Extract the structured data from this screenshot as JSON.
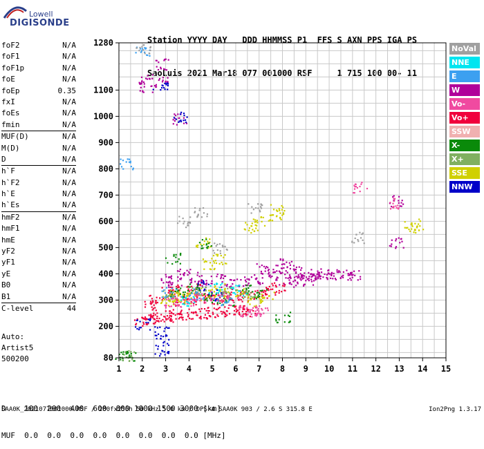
{
  "logo": {
    "line1": "Lowell",
    "line2": "DIGISONDE"
  },
  "header": {
    "line1": "Station YYYY DAY   DDD HHMMSS P1  FFS S AXN PPS IGA PS",
    "line2": "SaoLuis 2021 Mar18 077 001000 RSF     1 715 100 00- 11"
  },
  "params": [
    {
      "name": "foF2",
      "value": "N/A"
    },
    {
      "name": "foF1",
      "value": "N/A"
    },
    {
      "name": "foF1p",
      "value": "N/A"
    },
    {
      "name": "foE",
      "value": "N/A"
    },
    {
      "name": "foEp",
      "value": "0.35"
    },
    {
      "name": "fxI",
      "value": "N/A"
    },
    {
      "name": "foEs",
      "value": "N/A"
    },
    {
      "name": "fmin",
      "value": "N/A"
    },
    {
      "sep": true
    },
    {
      "name": "MUF(D)",
      "value": "N/A"
    },
    {
      "name": "M(D)",
      "value": "N/A"
    },
    {
      "name": "D",
      "value": "N/A"
    },
    {
      "sep": true
    },
    {
      "name": "h`F",
      "value": "N/A"
    },
    {
      "name": "h`F2",
      "value": "N/A"
    },
    {
      "name": "h`E",
      "value": "N/A"
    },
    {
      "name": "h`Es",
      "value": "N/A"
    },
    {
      "sep": true
    },
    {
      "name": "hmF2",
      "value": "N/A"
    },
    {
      "name": "hmF1",
      "value": "N/A"
    },
    {
      "name": "hmE",
      "value": "N/A"
    },
    {
      "name": "yF2",
      "value": "N/A"
    },
    {
      "name": "yF1",
      "value": "N/A"
    },
    {
      "name": "yE",
      "value": "N/A"
    },
    {
      "name": "B0",
      "value": "N/A"
    },
    {
      "name": "B1",
      "value": "N/A"
    },
    {
      "sep": true
    },
    {
      "name": "C-level",
      "value": "44"
    }
  ],
  "auto": [
    "Auto:",
    "Artist5",
    "500200"
  ],
  "legend": [
    {
      "label": "NoVal",
      "color": "#a0a0a0"
    },
    {
      "label": "NNE",
      "color": "#00e5f0"
    },
    {
      "label": "E",
      "color": "#3ca0f0"
    },
    {
      "label": "W",
      "color": "#b0009a"
    },
    {
      "label": "Vo-",
      "color": "#f04aa0"
    },
    {
      "label": "Vo+",
      "color": "#f0003c"
    },
    {
      "label": "SSW",
      "color": "#f0b0b0"
    },
    {
      "label": "X-",
      "color": "#0a8a0a"
    },
    {
      "label": "X+",
      "color": "#80b060"
    },
    {
      "label": "SSE",
      "color": "#d0d000"
    },
    {
      "label": "NNW",
      "color": "#0000c8"
    }
  ],
  "chart_data": {
    "type": "scatter",
    "title": "",
    "xlabel": "",
    "ylabel": "",
    "xlim": [
      1,
      15
    ],
    "ylim": [
      80,
      1280
    ],
    "x_ticks": [
      1,
      2,
      3,
      4,
      5,
      6,
      7,
      8,
      9,
      10,
      11,
      12,
      13,
      14,
      15
    ],
    "y_ticks": [
      80,
      200,
      300,
      400,
      500,
      600,
      700,
      800,
      900,
      1000,
      1100,
      1280
    ],
    "grid": true,
    "series": [
      {
        "color": "#f0003c",
        "points": [
          [
            1.9,
            225
          ],
          [
            2.2,
            228
          ],
          [
            2.5,
            232
          ],
          [
            2.8,
            236
          ],
          [
            3.1,
            240
          ],
          [
            3.4,
            245
          ],
          [
            3.8,
            248
          ],
          [
            4.2,
            250
          ],
          [
            4.6,
            252
          ],
          [
            5.0,
            255
          ],
          [
            5.4,
            258
          ],
          [
            5.8,
            262
          ],
          [
            6.2,
            262
          ],
          [
            6.6,
            258
          ],
          [
            3.5,
            300
          ],
          [
            4.0,
            305
          ],
          [
            4.5,
            310
          ],
          [
            5.0,
            300
          ],
          [
            5.5,
            315
          ],
          [
            6.0,
            318
          ],
          [
            6.5,
            320
          ],
          [
            7.0,
            330
          ],
          [
            7.4,
            340
          ],
          [
            7.8,
            350
          ],
          [
            3.0,
            330
          ],
          [
            3.5,
            340
          ],
          [
            4.2,
            345
          ],
          [
            2.4,
            280
          ],
          [
            2.6,
            300
          ]
        ]
      },
      {
        "color": "#b0009a",
        "points": [
          [
            7.6,
            400
          ],
          [
            7.9,
            420
          ],
          [
            8.2,
            440
          ],
          [
            8.5,
            410
          ],
          [
            8.8,
            390
          ],
          [
            9.1,
            400
          ],
          [
            9.5,
            395
          ],
          [
            9.8,
            400
          ],
          [
            10.2,
            400
          ],
          [
            10.6,
            398
          ],
          [
            11.0,
            395
          ],
          [
            8.0,
            380
          ],
          [
            8.6,
            370
          ],
          [
            9.2,
            380
          ],
          [
            3.0,
            380
          ],
          [
            3.4,
            370
          ],
          [
            3.8,
            400
          ],
          [
            4.2,
            390
          ],
          [
            4.6,
            360
          ],
          [
            5.2,
            380
          ],
          [
            5.6,
            360
          ],
          [
            6.2,
            370
          ],
          [
            6.8,
            380
          ],
          [
            7.2,
            420
          ],
          [
            2.1,
            1140
          ],
          [
            2.1,
            1110
          ],
          [
            2.8,
            1130
          ],
          [
            2.8,
            1200
          ],
          [
            12.85,
            680
          ],
          [
            12.85,
            520
          ],
          [
            3.6,
            990
          ]
        ]
      },
      {
        "color": "#d0d000",
        "points": [
          [
            3.0,
            300
          ],
          [
            3.4,
            315
          ],
          [
            3.8,
            305
          ],
          [
            4.2,
            320
          ],
          [
            4.8,
            330
          ],
          [
            5.3,
            345
          ],
          [
            5.8,
            330
          ],
          [
            6.3,
            325
          ],
          [
            6.8,
            300
          ],
          [
            7.3,
            315
          ],
          [
            7.8,
            650
          ],
          [
            7.7,
            610
          ],
          [
            6.9,
            600
          ],
          [
            6.6,
            580
          ],
          [
            13.8,
            590
          ],
          [
            13.5,
            580
          ],
          [
            4.9,
            440
          ],
          [
            5.3,
            460
          ],
          [
            4.6,
            520
          ],
          [
            3.3,
            320
          ]
        ]
      },
      {
        "color": "#0000c8",
        "points": [
          [
            2.8,
            180
          ],
          [
            2.8,
            150
          ],
          [
            2.8,
            110
          ],
          [
            2.0,
            210
          ],
          [
            3.6,
            1000
          ],
          [
            4.6,
            360
          ],
          [
            5.1,
            320
          ],
          [
            2.75,
            1120
          ]
        ]
      },
      {
        "color": "#0a8a0a",
        "points": [
          [
            1.1,
            88
          ],
          [
            1.4,
            88
          ],
          [
            3.5,
            330
          ],
          [
            4.1,
            350
          ],
          [
            4.9,
            310
          ],
          [
            5.6,
            300
          ],
          [
            6.3,
            340
          ],
          [
            7.0,
            325
          ],
          [
            8.0,
            235
          ],
          [
            3.3,
            460
          ],
          [
            4.7,
            520
          ]
        ]
      },
      {
        "color": "#80b060",
        "points": [
          [
            1.3,
            90
          ],
          [
            3.2,
            320
          ],
          [
            4.4,
            330
          ],
          [
            5.7,
            330
          ],
          [
            6.5,
            330
          ]
        ]
      },
      {
        "color": "#f04aa0",
        "points": [
          [
            3.2,
            290
          ],
          [
            3.6,
            295
          ],
          [
            4.0,
            300
          ],
          [
            4.4,
            310
          ],
          [
            5.2,
            320
          ],
          [
            5.9,
            300
          ],
          [
            6.4,
            260
          ],
          [
            6.8,
            258
          ],
          [
            7.1,
            265
          ],
          [
            11.3,
            730
          ],
          [
            12.8,
            670
          ]
        ]
      },
      {
        "color": "#3ca0f0",
        "points": [
          [
            2.0,
            1250
          ],
          [
            3.1,
            330
          ],
          [
            4.3,
            325
          ],
          [
            5.5,
            300
          ],
          [
            1.3,
            820
          ]
        ]
      },
      {
        "color": "#00e5f0",
        "points": [
          [
            3.9,
            300
          ],
          [
            5.1,
            350
          ],
          [
            6.1,
            340
          ]
        ]
      },
      {
        "color": "#a0a0a0",
        "points": [
          [
            3.7,
            600
          ],
          [
            4.5,
            640
          ],
          [
            5.3,
            500
          ],
          [
            6.8,
            650
          ],
          [
            11.2,
            540
          ],
          [
            2.0,
            1255
          ]
        ]
      }
    ]
  },
  "bottom": {
    "line1": "D    100  200  400  600  800 1000 1500 3000 [km]",
    "line2": "MUF  0.0  0.0  0.0  0.0  0.0  0.0  0.0  0.0 [MHz]"
  },
  "footer": "SAA0K_2021077001000.RSF / 280fx256h 50 kHz 5.0 km / DPS-4 SAA0K 903 / 2.6 S 315.8 E",
  "footer_version": "Ion2Png 1.3.17"
}
